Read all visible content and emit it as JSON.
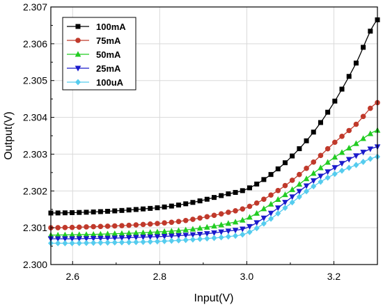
{
  "chart_data": {
    "type": "line",
    "xlabel": "Input(V)",
    "ylabel": "Output(V)",
    "xlim": [
      2.55,
      3.3
    ],
    "ylim": [
      2.3,
      2.307
    ],
    "xticks": [
      "2.6",
      "2.8",
      "3.0",
      "3.2"
    ],
    "xtick_values": [
      2.6,
      2.8,
      3.0,
      3.2
    ],
    "yticks": [
      "2.300",
      "2.301",
      "2.302",
      "2.303",
      "2.304",
      "2.305",
      "2.306",
      "2.307"
    ],
    "ytick_values": [
      2.3,
      2.301,
      2.302,
      2.303,
      2.304,
      2.305,
      2.306,
      2.307
    ],
    "grid": true,
    "legend_position": "top-left",
    "x": [
      2.55,
      2.6,
      2.65,
      2.7,
      2.75,
      2.8,
      2.85,
      2.9,
      2.95,
      3.0,
      3.05,
      3.1,
      3.15,
      3.2,
      3.25,
      3.3
    ],
    "series": [
      {
        "name": "100mA",
        "color": "#000000",
        "marker": "square",
        "values": [
          2.3014,
          2.30141,
          2.30143,
          2.30146,
          2.3015,
          2.30155,
          2.30163,
          2.30175,
          2.3019,
          2.30205,
          2.3024,
          2.3029,
          2.30355,
          2.3044,
          2.30545,
          2.30665
        ]
      },
      {
        "name": "75mA",
        "color": "#c0392b",
        "marker": "circle",
        "values": [
          2.301,
          2.30101,
          2.30103,
          2.30105,
          2.30108,
          2.30112,
          2.30118,
          2.30128,
          2.3014,
          2.30155,
          2.30185,
          2.30225,
          2.30275,
          2.3033,
          2.3038,
          2.3044
        ]
      },
      {
        "name": "50mA",
        "color": "#22cc22",
        "marker": "triangle-up",
        "values": [
          2.3008,
          2.30081,
          2.30082,
          2.30084,
          2.30086,
          2.30089,
          2.30093,
          2.301,
          2.3011,
          2.30125,
          2.3016,
          2.302,
          2.30245,
          2.3029,
          2.30328,
          2.30365
        ]
      },
      {
        "name": "25mA",
        "color": "#1a1acc",
        "marker": "triangle-down",
        "values": [
          2.3007,
          2.3007,
          2.30071,
          2.30072,
          2.30074,
          2.30076,
          2.30079,
          2.30083,
          2.3009,
          2.301,
          2.30135,
          2.3018,
          2.30225,
          2.30262,
          2.30295,
          2.3032
        ]
      },
      {
        "name": "100uA",
        "color": "#55ccee",
        "marker": "diamond",
        "values": [
          2.30058,
          2.30058,
          2.30059,
          2.3006,
          2.30061,
          2.30063,
          2.30066,
          2.3007,
          2.30075,
          2.30085,
          2.3012,
          2.30165,
          2.3021,
          2.30245,
          2.3027,
          2.30293
        ]
      }
    ]
  }
}
